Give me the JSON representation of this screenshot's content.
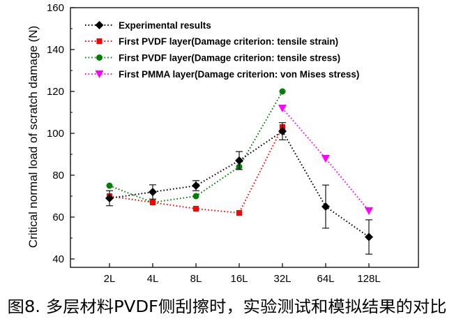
{
  "caption": "图8. 多层材料PVDF侧刮擦时，实验测试和模拟结果的对比",
  "chart_data": {
    "type": "line",
    "ylabel": "Critical normal load of scratch damage (N)",
    "categories": [
      "2L",
      "4L",
      "8L",
      "16L",
      "32L",
      "64L",
      "128L"
    ],
    "ylim": [
      36,
      160
    ],
    "yticks": [
      40,
      60,
      80,
      100,
      120,
      140,
      160
    ],
    "grid": false,
    "legend": "top-left",
    "series": [
      {
        "name": "Experimental results",
        "color": "#000000",
        "marker": "diamond",
        "values": [
          69,
          72,
          75,
          87,
          101,
          65,
          50.5
        ],
        "error": [
          3.6,
          3.4,
          2.4,
          4.3,
          4.1,
          10.3,
          8.2
        ]
      },
      {
        "name": "First PVDF layer(Damage criterion: tensile strain)",
        "color": "#ff0000",
        "marker": "square",
        "values": [
          70,
          67,
          64,
          62,
          103,
          null,
          null
        ]
      },
      {
        "name": "First PVDF layer(Damage criterion: tensile stress)",
        "color": "#008000",
        "marker": "circle",
        "values": [
          75,
          67,
          70,
          84,
          120,
          null,
          null
        ]
      },
      {
        "name": "First PMMA layer(Damage criterion: von Mises stress)",
        "color": "#ff00ff",
        "marker": "triangle-down",
        "values": [
          null,
          null,
          null,
          null,
          112,
          88,
          63
        ]
      }
    ]
  }
}
